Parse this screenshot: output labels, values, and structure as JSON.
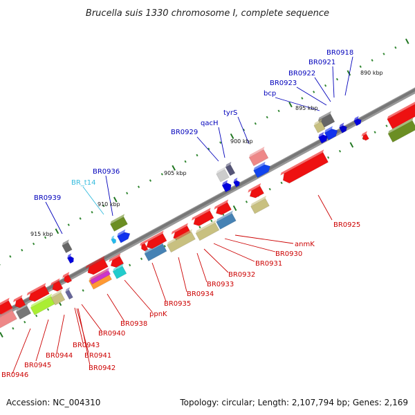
{
  "title": "Brucella suis 1330 chromosome I, complete sequence",
  "footer": {
    "accession": "Accession: NC_004310",
    "summary": "Topology: circular; Length: 2,107,794 bp; Genes: 2,169"
  },
  "colors": {
    "backbone": "#777777",
    "forward_label": "#0000bb",
    "forward_rna_label": "#33bbdd",
    "reverse_label": "#cc0000",
    "tick": "#228822"
  },
  "scale_labels": [
    "890 kbp",
    "895 kbp",
    "900 kbp",
    "905 kbp",
    "910 kbp",
    "915 kbp"
  ],
  "labels_forward": [
    "BR0918",
    "BR0921",
    "BR0922",
    "BR0923",
    "bcp",
    "tyrS",
    "qacH",
    "BR0929",
    "BR0936",
    "BR_t14",
    "BR0939"
  ],
  "labels_reverse": [
    "BR0925",
    "anmK",
    "BR0930",
    "BR0931",
    "BR0932",
    "BR0933",
    "BR0934",
    "BR0935",
    "ppnK",
    "BR0938",
    "BR0940",
    "BR0943",
    "BR0941",
    "BR0942",
    "BR0944",
    "BR0945",
    "BR0946"
  ]
}
